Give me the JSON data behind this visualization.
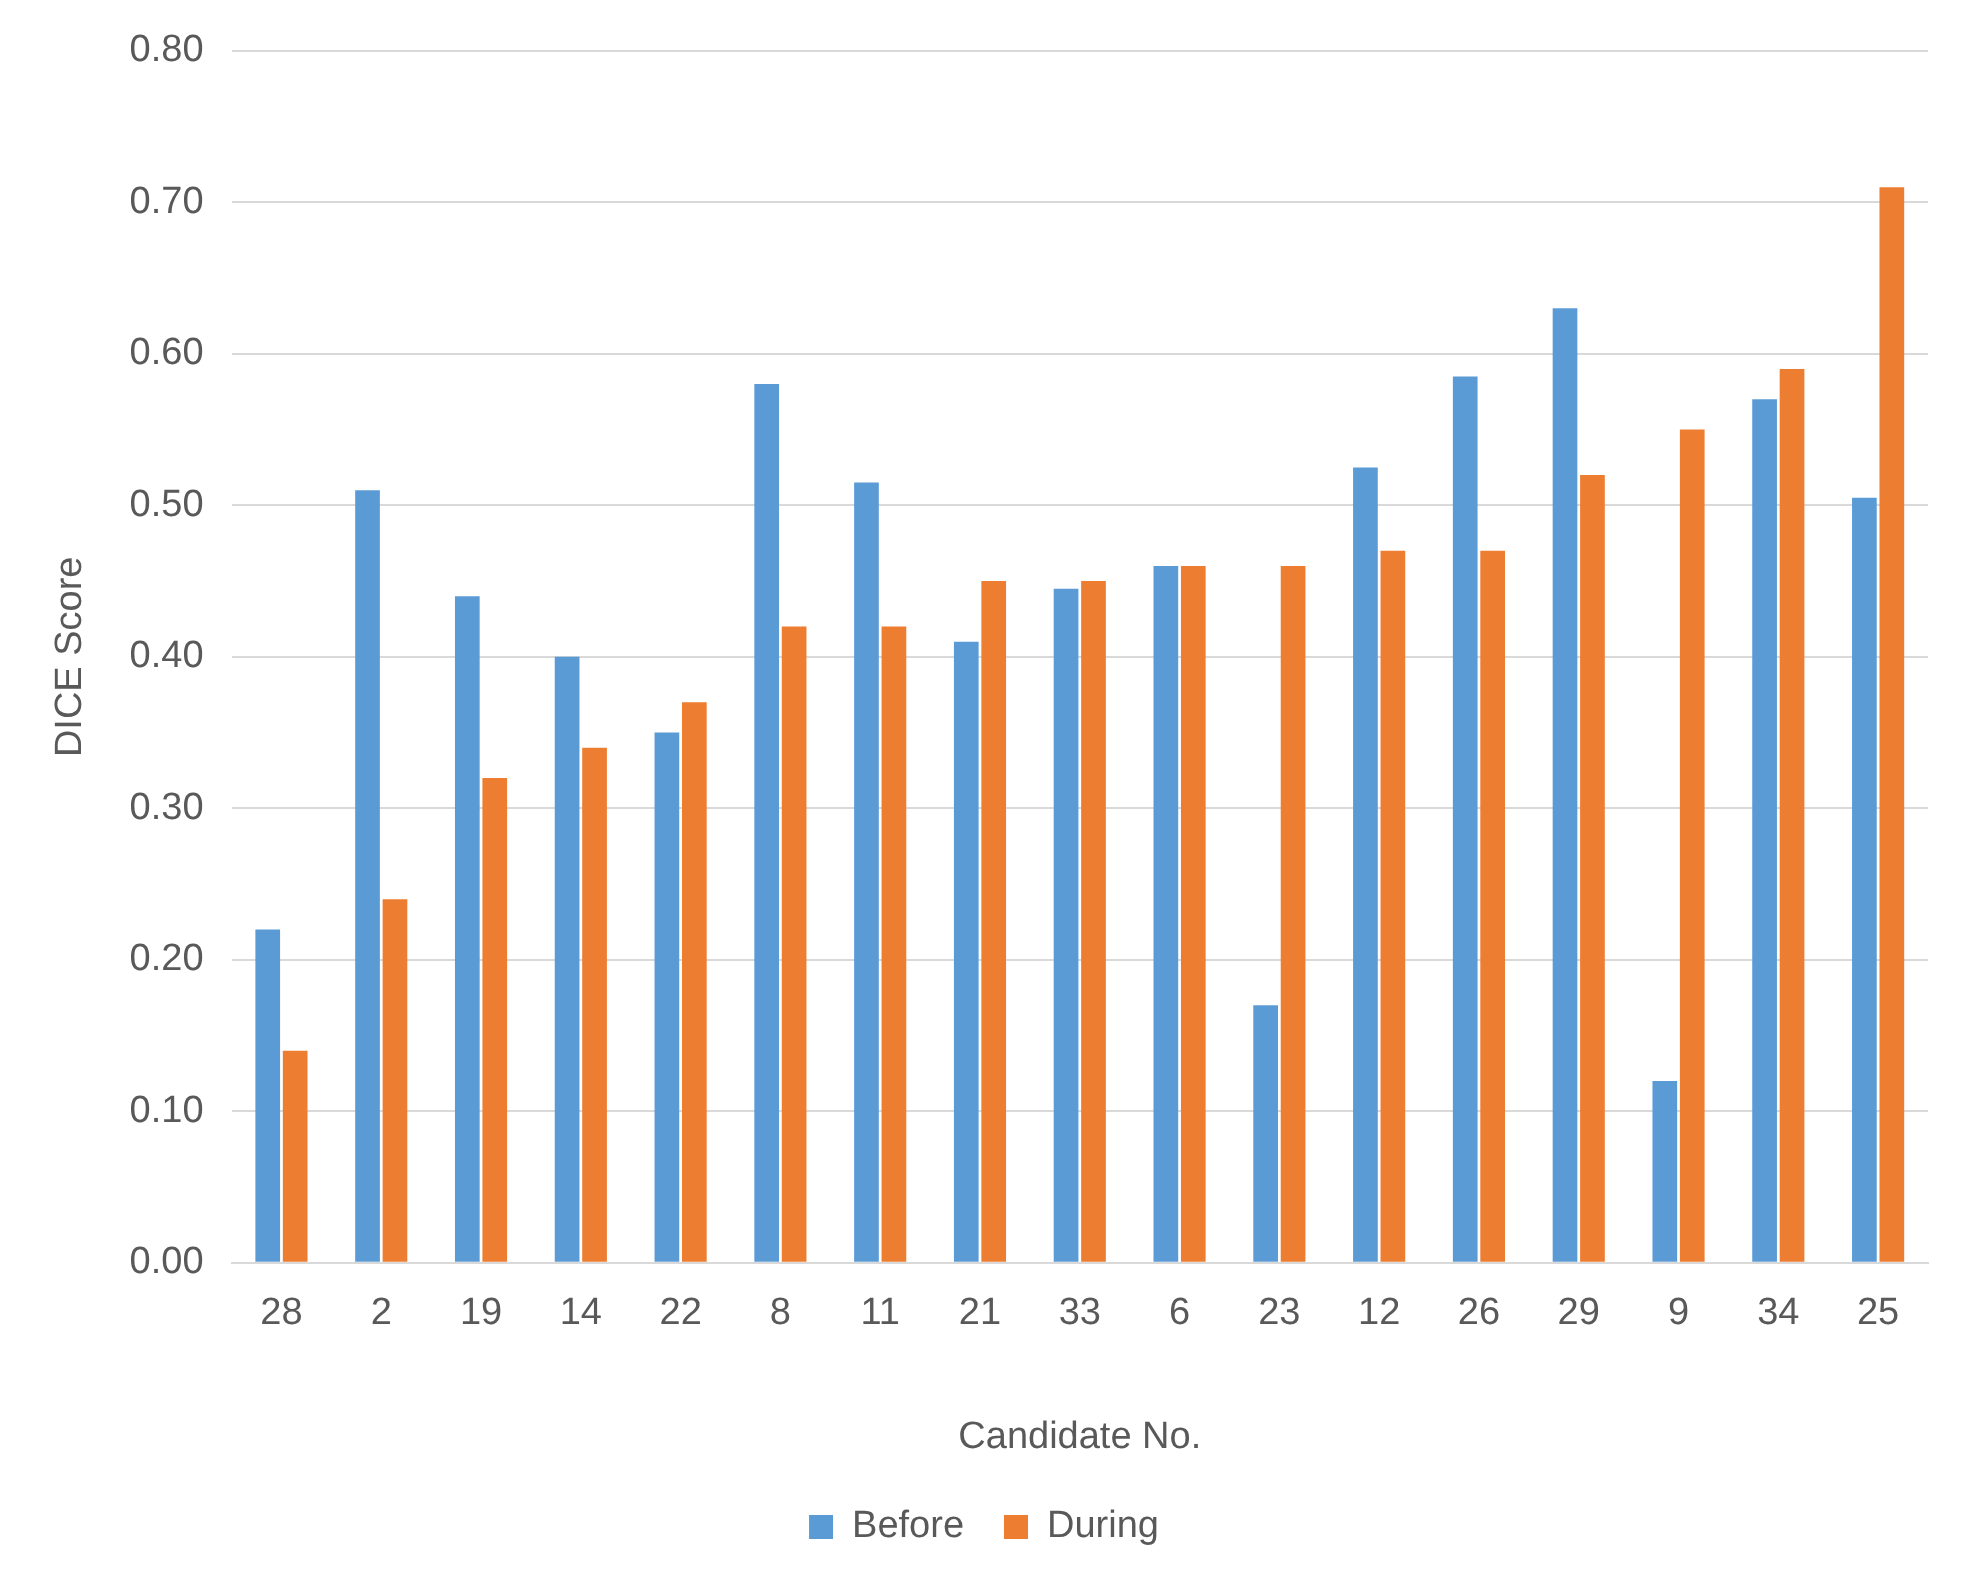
{
  "chart_data": {
    "type": "bar",
    "xlabel": "Candidate No.",
    "ylabel": "DICE Score",
    "categories": [
      "28",
      "2",
      "19",
      "14",
      "22",
      "8",
      "11",
      "21",
      "33",
      "6",
      "23",
      "12",
      "26",
      "29",
      "9",
      "34",
      "25"
    ],
    "series": [
      {
        "name": "Before",
        "color": "#5b9bd5",
        "values": [
          0.22,
          0.51,
          0.44,
          0.4,
          0.35,
          0.58,
          0.515,
          0.41,
          0.445,
          0.46,
          0.17,
          0.525,
          0.585,
          0.63,
          0.12,
          0.57,
          0.505
        ]
      },
      {
        "name": "During",
        "color": "#ed7d31",
        "values": [
          0.14,
          0.24,
          0.32,
          0.34,
          0.37,
          0.42,
          0.42,
          0.45,
          0.45,
          0.46,
          0.46,
          0.47,
          0.47,
          0.52,
          0.55,
          0.59,
          0.71
        ]
      }
    ],
    "ylim": [
      0,
      0.8
    ],
    "yticks": [
      {
        "value": 0,
        "label": "0.00"
      },
      {
        "value": 0.1,
        "label": "0.10"
      },
      {
        "value": 0.2,
        "label": "0.20"
      },
      {
        "value": 0.3,
        "label": "0.30"
      },
      {
        "value": 0.4,
        "label": "0.40"
      },
      {
        "value": 0.5,
        "label": "0.50"
      },
      {
        "value": 0.6,
        "label": "0.60"
      },
      {
        "value": 0.7,
        "label": "0.70"
      },
      {
        "value": 0.8,
        "label": "0.80"
      }
    ],
    "grid": "y",
    "legend": "bottom"
  }
}
